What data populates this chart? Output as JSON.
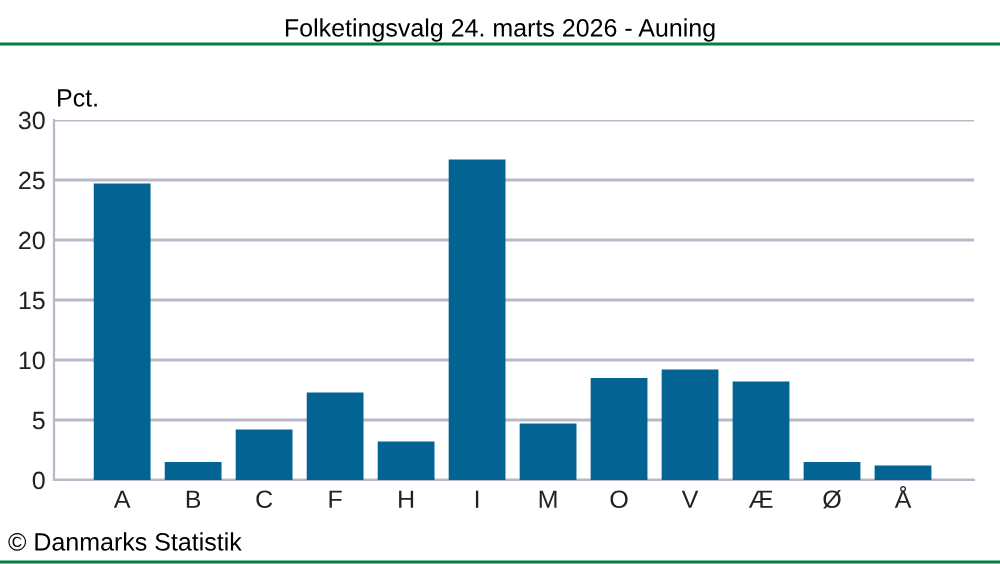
{
  "chart_data": {
    "type": "bar",
    "title": "Folketingsvalg 24. marts 2026 - Auning",
    "ylabel": "Pct.",
    "categories": [
      "A",
      "B",
      "C",
      "F",
      "H",
      "I",
      "M",
      "O",
      "V",
      "Æ",
      "Ø",
      "Å"
    ],
    "values": [
      24.7,
      1.5,
      4.2,
      7.3,
      3.2,
      26.7,
      4.7,
      8.5,
      9.2,
      8.2,
      1.5,
      1.2
    ],
    "color": "#036493",
    "ylim": [
      0,
      30
    ],
    "yticks": [
      0,
      5,
      10,
      15,
      20,
      25,
      30
    ],
    "grid": "y",
    "annotations": [
      "© Danmarks Statistik"
    ]
  }
}
